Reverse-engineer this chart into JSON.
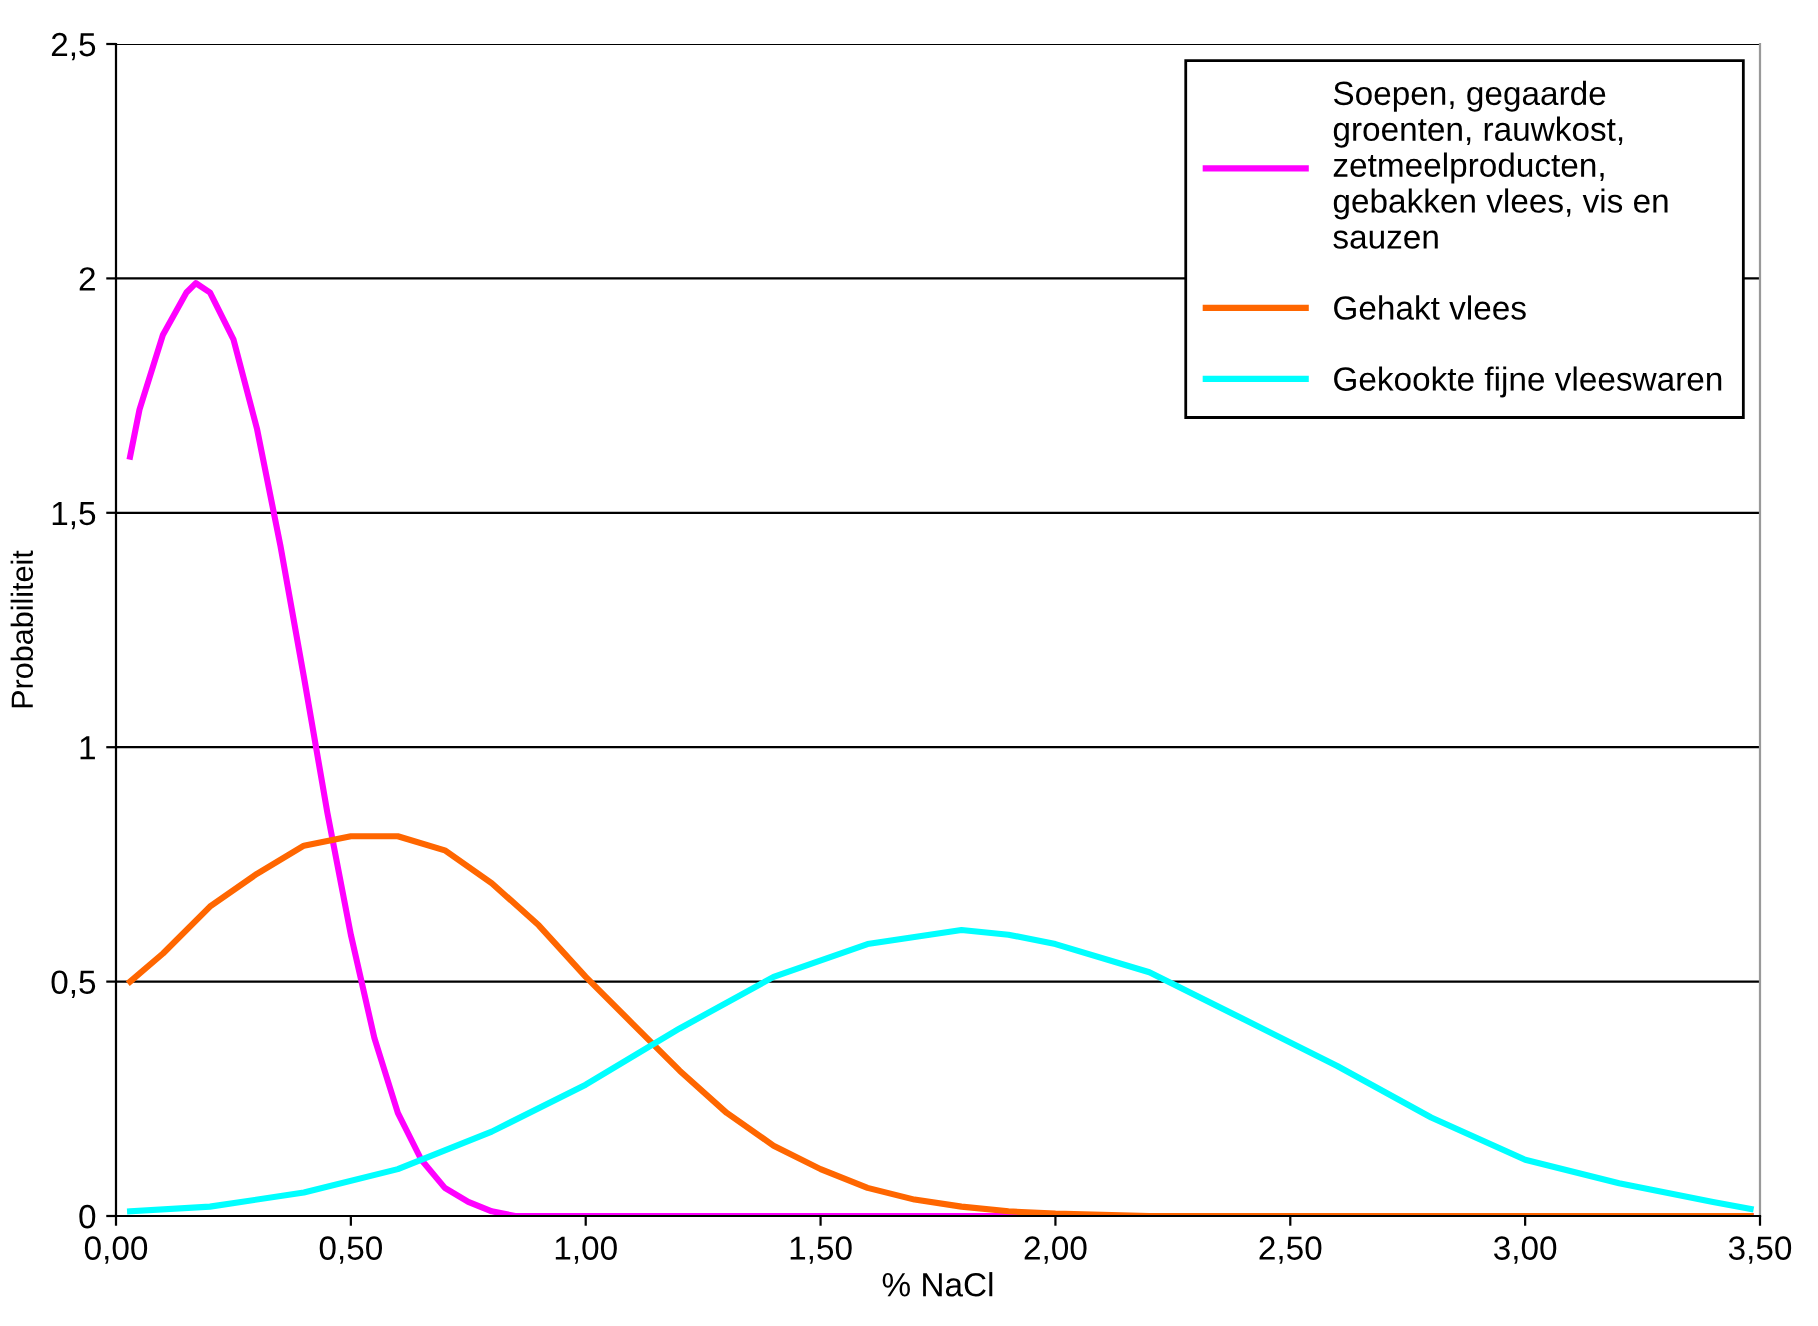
{
  "chart_data": {
    "type": "line",
    "xlabel": "% NaCl",
    "ylabel": "Probabiliteit",
    "xlim": [
      0,
      3.5
    ],
    "xticks": [
      {
        "value": 0,
        "label": "0,00"
      },
      {
        "value": 0.5,
        "label": "0,50"
      },
      {
        "value": 1,
        "label": "1,00"
      },
      {
        "value": 1.5,
        "label": "1,50"
      },
      {
        "value": 2,
        "label": "2,00"
      },
      {
        "value": 2.5,
        "label": "2,50"
      },
      {
        "value": 3,
        "label": "3,00"
      },
      {
        "value": 3.5,
        "label": "3,50"
      }
    ],
    "ylim": [
      0,
      2.5
    ],
    "yticks": [
      0,
      {
        "value": 0.5,
        "label": "0,5"
      },
      1,
      {
        "value": 1.5,
        "label": "1,5"
      },
      2,
      {
        "value": 2.5,
        "label": "2,5"
      }
    ],
    "grid": "y",
    "legend": "top right",
    "marker": "none",
    "line_style": "solid",
    "series": [
      {
        "name": "Soepen, gegaarde\ngroenten, rauwkost,\nzetmeelproducten,\ngebakken vlees, vis en\nsauzen",
        "color": "#ff00ff",
        "x": [
          0.03,
          0.05,
          0.1,
          0.15,
          0.17,
          0.2,
          0.25,
          0.3,
          0.35,
          0.4,
          0.45,
          0.5,
          0.55,
          0.6,
          0.65,
          0.7,
          0.75,
          0.8,
          0.85,
          0.9,
          1.5,
          2.5,
          3.48
        ],
        "values": [
          1.62,
          1.72,
          1.88,
          1.97,
          1.99,
          1.97,
          1.87,
          1.68,
          1.43,
          1.15,
          0.86,
          0.6,
          0.38,
          0.22,
          0.12,
          0.06,
          0.03,
          0.01,
          0.0,
          0,
          0,
          0,
          0
        ]
      },
      {
        "name": "Gehakt vlees",
        "color": "#ff6600",
        "x": [
          0.03,
          0.1,
          0.2,
          0.3,
          0.4,
          0.5,
          0.6,
          0.7,
          0.8,
          0.9,
          1.0,
          1.1,
          1.2,
          1.3,
          1.4,
          1.5,
          1.6,
          1.7,
          1.8,
          1.9,
          2.0,
          2.2,
          3.48
        ],
        "values": [
          0.5,
          0.56,
          0.66,
          0.73,
          0.79,
          0.81,
          0.81,
          0.78,
          0.71,
          0.62,
          0.51,
          0.41,
          0.31,
          0.22,
          0.15,
          0.1,
          0.06,
          0.035,
          0.02,
          0.01,
          0.005,
          0,
          0
        ]
      },
      {
        "name": "Gekookte fijne vleeswaren",
        "color": "#00ffff",
        "x": [
          0.03,
          0.2,
          0.4,
          0.6,
          0.8,
          1.0,
          1.2,
          1.4,
          1.6,
          1.8,
          1.9,
          2.0,
          2.2,
          2.4,
          2.6,
          2.8,
          3.0,
          3.2,
          3.4,
          3.48
        ],
        "values": [
          0.01,
          0.02,
          0.05,
          0.1,
          0.18,
          0.28,
          0.4,
          0.51,
          0.58,
          0.61,
          0.6,
          0.58,
          0.52,
          0.42,
          0.32,
          0.21,
          0.12,
          0.07,
          0.03,
          0.015
        ]
      }
    ]
  }
}
